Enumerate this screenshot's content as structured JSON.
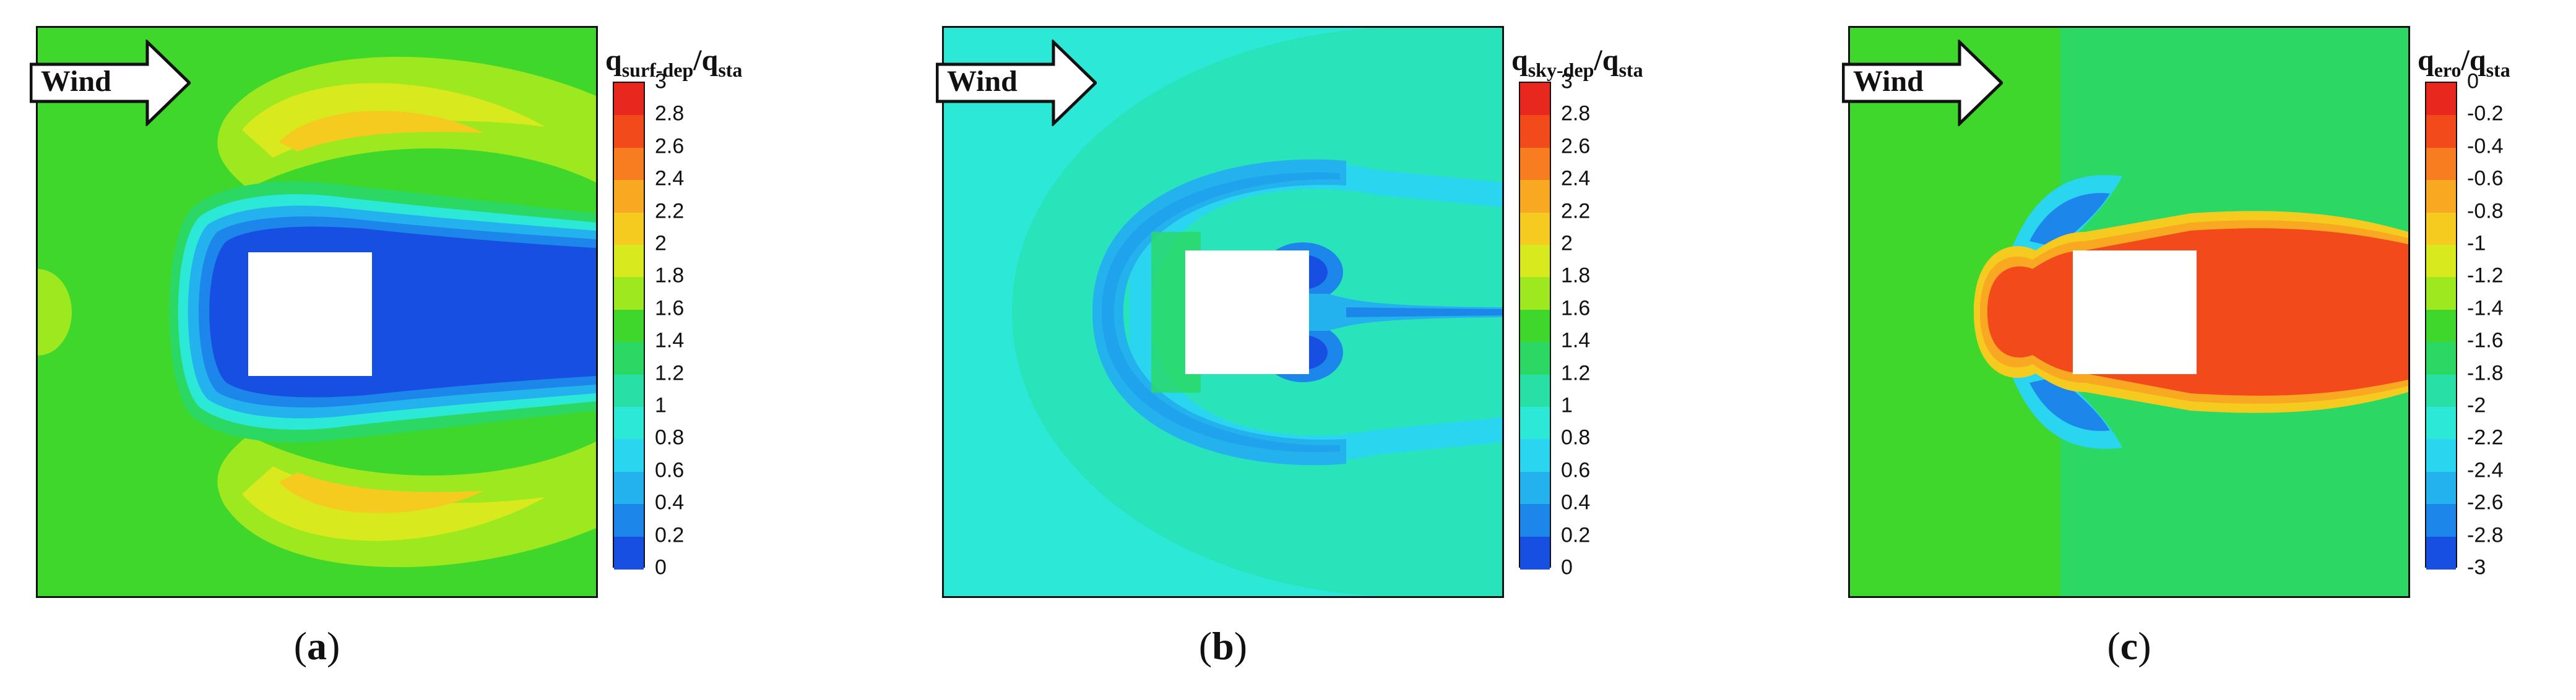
{
  "panels": [
    {
      "id": "a",
      "caption_letter": "a",
      "wind_label": "Wind",
      "quantity_main": "q",
      "quantity_sub": "surf-dep",
      "quantity_sep": "/",
      "quantity_den_main": "q",
      "quantity_den_sub": "sta",
      "ticks": [
        "3",
        "2.8",
        "2.6",
        "2.4",
        "2.2",
        "2",
        "1.8",
        "1.6",
        "1.4",
        "1.2",
        "1",
        "0.8",
        "0.6",
        "0.4",
        "0.2",
        "0"
      ]
    },
    {
      "id": "b",
      "caption_letter": "b",
      "wind_label": "Wind",
      "quantity_main": "q",
      "quantity_sub": "sky-dep",
      "quantity_sep": "/",
      "quantity_den_main": "q",
      "quantity_den_sub": "sta",
      "ticks": [
        "3",
        "2.8",
        "2.6",
        "2.4",
        "2.2",
        "2",
        "1.8",
        "1.6",
        "1.4",
        "1.2",
        "1",
        "0.8",
        "0.6",
        "0.4",
        "0.2",
        "0"
      ]
    },
    {
      "id": "c",
      "caption_letter": "c",
      "wind_label": "Wind",
      "quantity_main": "q",
      "quantity_sub": "ero",
      "quantity_sep": "/",
      "quantity_den_main": "q",
      "quantity_den_sub": "sta",
      "ticks": [
        "0",
        "-0.2",
        "-0.4",
        "-0.6",
        "-0.8",
        "-1",
        "-1.2",
        "-1.4",
        "-1.6",
        "-1.8",
        "-2",
        "-2.2",
        "-2.4",
        "-2.6",
        "-2.8",
        "-3"
      ]
    }
  ],
  "colormap": [
    "#e8281e",
    "#f34a1b",
    "#f87d1e",
    "#f8a821",
    "#f5cb1f",
    "#d8e91e",
    "#9ee820",
    "#3fd72c",
    "#2bd864",
    "#28e0a5",
    "#2ce8d6",
    "#2ad5f0",
    "#23b2ee",
    "#1c86ea",
    "#174fe2",
    "#1824d3"
  ]
}
